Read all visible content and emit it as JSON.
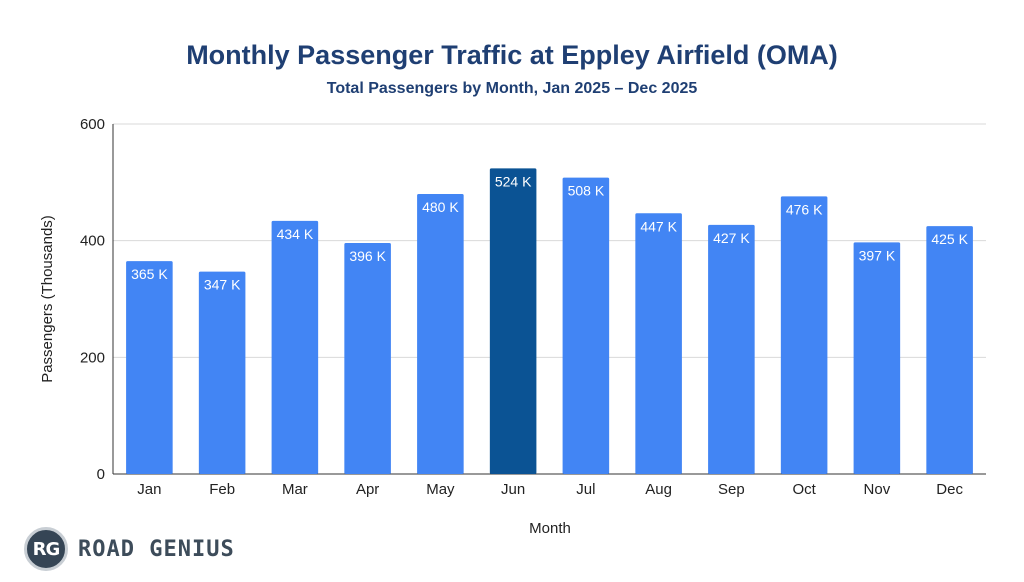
{
  "chart_data": {
    "type": "bar",
    "title": "Monthly Passenger Traffic at Eppley Airfield (OMA)",
    "subtitle": "Total Passengers by Month, Jan 2025 – Dec 2025",
    "xlabel": "Month",
    "ylabel": "Passengers (Thousands)",
    "ylim": [
      0,
      600
    ],
    "yticks": [
      0,
      200,
      400,
      600
    ],
    "grid": true,
    "categories": [
      "Jan",
      "Feb",
      "Mar",
      "Apr",
      "May",
      "Jun",
      "Jul",
      "Aug",
      "Sep",
      "Oct",
      "Nov",
      "Dec"
    ],
    "values": [
      365,
      347,
      434,
      396,
      480,
      524,
      508,
      447,
      427,
      476,
      397,
      425
    ],
    "labels": [
      "365 K",
      "347 K",
      "434 K",
      "396 K",
      "480 K",
      "524 K",
      "508 K",
      "447 K",
      "427 K",
      "476 K",
      "397 K",
      "425 K"
    ],
    "highlight_index": 5,
    "colors": {
      "bar": "#4285f4",
      "highlight": "#0b5394",
      "grid": "#d9d9d9",
      "title": "#1f3f73"
    }
  },
  "brand": {
    "badge": "RG",
    "name": "ROAD GENIUS"
  }
}
